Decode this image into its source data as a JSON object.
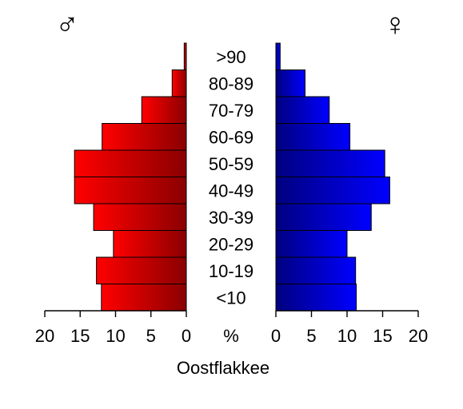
{
  "chart_data": {
    "type": "bar",
    "orientation": "horizontal",
    "layout": "population-pyramid",
    "title": "Oostflakkee",
    "unit_label": "%",
    "symbols": {
      "left": "♂",
      "right": "♀"
    },
    "categories": [
      "<10",
      "10-19",
      "20-29",
      "30-39",
      "40-49",
      "50-59",
      "60-69",
      "70-79",
      "80-89",
      ">90"
    ],
    "series": [
      {
        "values": [
          12.0,
          12.7,
          10.3,
          13.1,
          15.8,
          15.8,
          11.9,
          6.3,
          2.0,
          0.3
        ],
        "color": "#ff0000",
        "side": "left"
      },
      {
        "values": [
          11.3,
          11.2,
          10.0,
          13.4,
          16.0,
          15.3,
          10.4,
          7.5,
          4.1,
          0.6
        ],
        "color": "#0000ff",
        "side": "right"
      }
    ],
    "xlim": [
      0,
      20
    ],
    "ticks": [
      "20",
      "15",
      "10",
      "5",
      "0",
      "0",
      "5",
      "10",
      "15",
      "20"
    ],
    "tick_values_left": [
      20,
      15,
      10,
      5,
      0
    ],
    "tick_values_right": [
      0,
      5,
      10,
      15,
      20
    ],
    "grid": false,
    "legend": "none"
  }
}
